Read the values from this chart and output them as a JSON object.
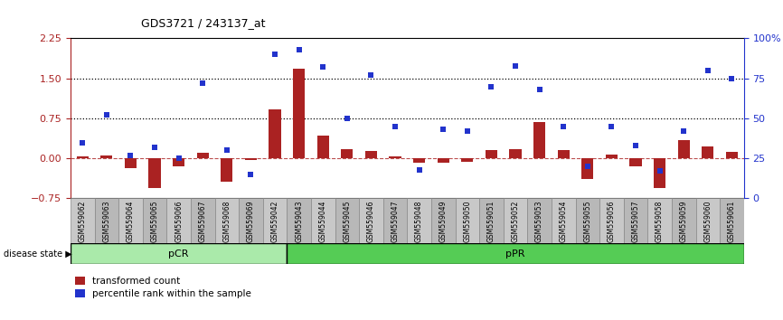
{
  "title": "GDS3721 / 243137_at",
  "samples": [
    "GSM559062",
    "GSM559063",
    "GSM559064",
    "GSM559065",
    "GSM559066",
    "GSM559067",
    "GSM559068",
    "GSM559069",
    "GSM559042",
    "GSM559043",
    "GSM559044",
    "GSM559045",
    "GSM559046",
    "GSM559047",
    "GSM559048",
    "GSM559049",
    "GSM559050",
    "GSM559051",
    "GSM559052",
    "GSM559053",
    "GSM559054",
    "GSM559055",
    "GSM559056",
    "GSM559057",
    "GSM559058",
    "GSM559059",
    "GSM559060",
    "GSM559061"
  ],
  "transformed_count": [
    0.03,
    0.05,
    -0.18,
    -0.55,
    -0.15,
    0.1,
    -0.43,
    -0.03,
    0.92,
    1.68,
    0.42,
    0.18,
    0.14,
    0.04,
    -0.08,
    -0.08,
    -0.07,
    0.15,
    0.17,
    0.68,
    0.15,
    -0.38,
    0.08,
    -0.15,
    -0.55,
    0.35,
    0.22,
    0.12
  ],
  "percentile_rank_pct": [
    35,
    52,
    27,
    32,
    25,
    72,
    30,
    15,
    90,
    93,
    82,
    50,
    77,
    45,
    18,
    43,
    42,
    70,
    83,
    68,
    45,
    20,
    45,
    33,
    17,
    42,
    80,
    75
  ],
  "pCR_count": 9,
  "pPR_count": 19,
  "bar_color": "#aa2222",
  "dot_color": "#2233cc",
  "ylim_left": [
    -0.75,
    2.25
  ],
  "yticks_left": [
    -0.75,
    0.0,
    0.75,
    1.5,
    2.25
  ],
  "right_tick_labels": [
    "0",
    "25",
    "50",
    "75",
    "100%"
  ],
  "hline1": 0.75,
  "hline2": 1.5,
  "zero_line": 0.0,
  "bg_color": "#ffffff",
  "pCR_color": "#aaeaaa",
  "pPR_color": "#55cc55",
  "tick_bg_color": "#cccccc",
  "legend_red_label": "transformed count",
  "legend_blue_label": "percentile rank within the sample",
  "disease_state_label": "disease state"
}
